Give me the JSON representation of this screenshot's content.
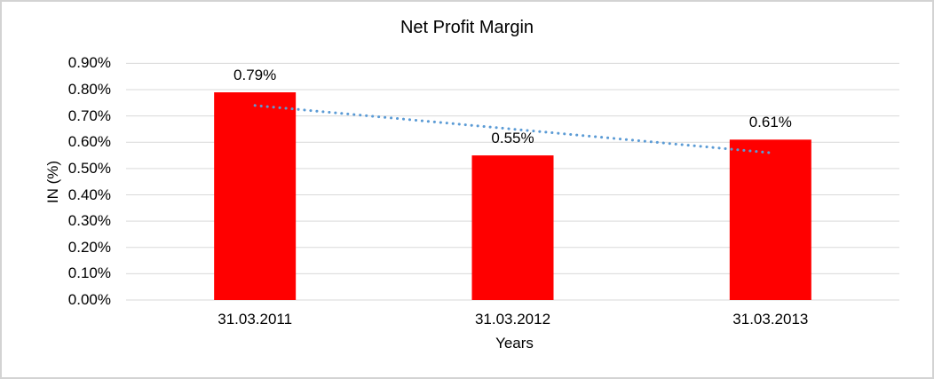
{
  "chart_data": {
    "type": "bar",
    "title": "Net Profit Margin",
    "categories": [
      "31.03.2011",
      "31.03.2012",
      "31.03.2013"
    ],
    "values": [
      0.79,
      0.55,
      0.61
    ],
    "data_labels": [
      "0.79%",
      "0.55%",
      "0.61%"
    ],
    "xlabel": "Years",
    "ylabel": "IN (%)",
    "ylim": [
      0,
      0.9
    ],
    "ytick_step": 0.1,
    "ytick_labels": [
      "0.00%",
      "0.10%",
      "0.20%",
      "0.30%",
      "0.40%",
      "0.50%",
      "0.60%",
      "0.70%",
      "0.80%",
      "0.90%"
    ],
    "grid": true,
    "legend": "none",
    "bar_color": "#ff0000",
    "gridline_color": "#d9d9d9",
    "text_color": "#000000",
    "frame_border_color": "#d3d3d3",
    "trendline": {
      "type": "linear",
      "style": "dotted",
      "color": "#5b9bd5",
      "start_value": 0.74,
      "end_value": 0.56
    }
  }
}
